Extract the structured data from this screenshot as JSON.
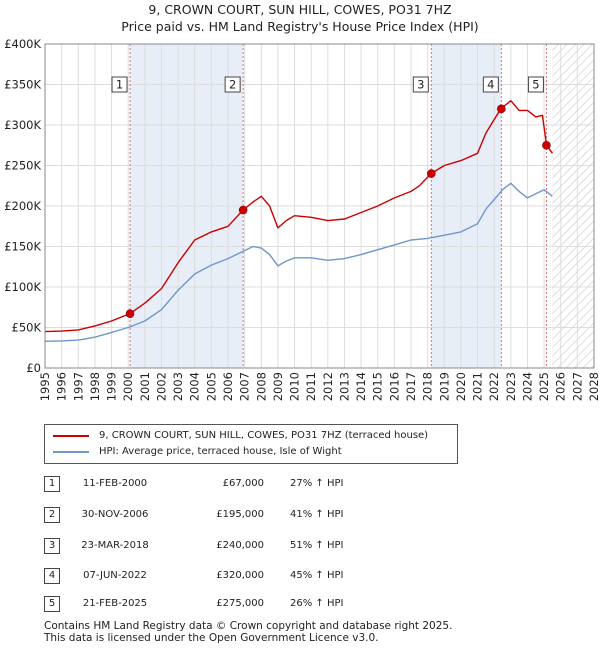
{
  "title_line1": "9, CROWN COURT, SUN HILL, COWES, PO31 7HZ",
  "title_line2": "Price paid vs. HM Land Registry's House Price Index (HPI)",
  "colors": {
    "property": "#cc0000",
    "hpi": "#6f96cc",
    "marker_border": "#cc0000",
    "shade": "#e8eef8"
  },
  "chart_data": {
    "type": "line",
    "xlim": [
      1995,
      2028
    ],
    "ylim": [
      0,
      400000
    ],
    "y_ticks": [
      0,
      50000,
      100000,
      150000,
      200000,
      250000,
      300000,
      350000,
      400000
    ],
    "y_tick_labels": [
      "£0",
      "£50K",
      "£100K",
      "£150K",
      "£200K",
      "£250K",
      "£300K",
      "£350K",
      "£400K"
    ],
    "x_ticks": [
      1995,
      1996,
      1997,
      1998,
      1999,
      2000,
      2001,
      2002,
      2003,
      2004,
      2005,
      2006,
      2007,
      2008,
      2009,
      2010,
      2011,
      2012,
      2013,
      2014,
      2015,
      2016,
      2017,
      2018,
      2019,
      2020,
      2021,
      2022,
      2023,
      2024,
      2025,
      2026,
      2027,
      2028
    ],
    "x_tick_labels": [
      "1995",
      "1996",
      "1997",
      "1998",
      "1999",
      "2000",
      "2001",
      "2002",
      "2003",
      "2004",
      "2005",
      "2006",
      "2007",
      "2008",
      "2009",
      "2010",
      "2011",
      "2012",
      "2013",
      "2014",
      "2015",
      "2016",
      "2017",
      "2018",
      "2019",
      "2020",
      "2021",
      "2022",
      "2023",
      "2024",
      "2025",
      "2026",
      "2027",
      "2028"
    ],
    "series": [
      {
        "name": "9, CROWN COURT, SUN HILL, COWES, PO31 7HZ (terraced house)",
        "color": "#cc0000",
        "points": [
          [
            1995.0,
            45000
          ],
          [
            1996.0,
            45500
          ],
          [
            1997.0,
            47000
          ],
          [
            1998.0,
            52000
          ],
          [
            1999.0,
            58000
          ],
          [
            2000.1,
            67000
          ],
          [
            2001.0,
            80000
          ],
          [
            2002.0,
            98000
          ],
          [
            2003.0,
            130000
          ],
          [
            2004.0,
            158000
          ],
          [
            2005.0,
            168000
          ],
          [
            2006.0,
            175000
          ],
          [
            2006.9,
            195000
          ],
          [
            2007.5,
            205000
          ],
          [
            2008.0,
            212000
          ],
          [
            2008.5,
            200000
          ],
          [
            2009.0,
            173000
          ],
          [
            2009.5,
            182000
          ],
          [
            2010.0,
            188000
          ],
          [
            2011.0,
            186000
          ],
          [
            2012.0,
            182000
          ],
          [
            2013.0,
            184000
          ],
          [
            2014.0,
            192000
          ],
          [
            2015.0,
            200000
          ],
          [
            2016.0,
            210000
          ],
          [
            2017.0,
            218000
          ],
          [
            2017.5,
            225000
          ],
          [
            2018.2,
            240000
          ],
          [
            2019.0,
            250000
          ],
          [
            2020.0,
            256000
          ],
          [
            2021.0,
            265000
          ],
          [
            2021.5,
            290000
          ],
          [
            2022.4,
            320000
          ],
          [
            2023.0,
            330000
          ],
          [
            2023.5,
            318000
          ],
          [
            2024.0,
            318000
          ],
          [
            2024.5,
            310000
          ],
          [
            2024.9,
            312000
          ],
          [
            2025.15,
            275000
          ],
          [
            2025.5,
            265000
          ]
        ]
      },
      {
        "name": "HPI: Average price, terraced house, Isle of Wight",
        "color": "#6f96cc",
        "points": [
          [
            1995.0,
            33000
          ],
          [
            1996.0,
            33500
          ],
          [
            1997.0,
            34500
          ],
          [
            1998.0,
            38000
          ],
          [
            1999.0,
            44000
          ],
          [
            2000.0,
            50000
          ],
          [
            2001.0,
            58000
          ],
          [
            2002.0,
            72000
          ],
          [
            2003.0,
            96000
          ],
          [
            2004.0,
            116000
          ],
          [
            2005.0,
            127000
          ],
          [
            2006.0,
            135000
          ],
          [
            2007.0,
            145000
          ],
          [
            2007.5,
            150000
          ],
          [
            2008.0,
            148000
          ],
          [
            2008.5,
            140000
          ],
          [
            2009.0,
            126000
          ],
          [
            2009.5,
            132000
          ],
          [
            2010.0,
            136000
          ],
          [
            2011.0,
            136000
          ],
          [
            2012.0,
            133000
          ],
          [
            2013.0,
            135000
          ],
          [
            2014.0,
            140000
          ],
          [
            2015.0,
            146000
          ],
          [
            2016.0,
            152000
          ],
          [
            2017.0,
            158000
          ],
          [
            2018.0,
            160000
          ],
          [
            2019.0,
            164000
          ],
          [
            2020.0,
            168000
          ],
          [
            2021.0,
            178000
          ],
          [
            2021.5,
            196000
          ],
          [
            2022.0,
            208000
          ],
          [
            2022.5,
            220000
          ],
          [
            2023.0,
            228000
          ],
          [
            2023.5,
            218000
          ],
          [
            2024.0,
            210000
          ],
          [
            2024.5,
            215000
          ],
          [
            2025.0,
            220000
          ],
          [
            2025.5,
            212000
          ]
        ]
      }
    ],
    "sales": [
      {
        "label": "1",
        "x": 2000.11,
        "y": 67000
      },
      {
        "label": "2",
        "x": 2006.91,
        "y": 195000
      },
      {
        "label": "3",
        "x": 2018.22,
        "y": 240000
      },
      {
        "label": "4",
        "x": 2022.43,
        "y": 320000
      },
      {
        "label": "5",
        "x": 2025.14,
        "y": 275000
      }
    ],
    "shaded_periods": [
      [
        2000.11,
        2006.91
      ],
      [
        2018.22,
        2022.43
      ]
    ],
    "future_from": 2025.5
  },
  "legend": {
    "property_label": "9, CROWN COURT, SUN HILL, COWES, PO31 7HZ (terraced house)",
    "hpi_label": "HPI: Average price, terraced house, Isle of Wight"
  },
  "transactions": [
    {
      "num": "1",
      "date": "11-FEB-2000",
      "price": "£67,000",
      "hpi": "27% ↑ HPI"
    },
    {
      "num": "2",
      "date": "30-NOV-2006",
      "price": "£195,000",
      "hpi": "41% ↑ HPI"
    },
    {
      "num": "3",
      "date": "23-MAR-2018",
      "price": "£240,000",
      "hpi": "51% ↑ HPI"
    },
    {
      "num": "4",
      "date": "07-JUN-2022",
      "price": "£320,000",
      "hpi": "45% ↑ HPI"
    },
    {
      "num": "5",
      "date": "21-FEB-2025",
      "price": "£275,000",
      "hpi": "26% ↑ HPI"
    }
  ],
  "footer": {
    "line1": "Contains HM Land Registry data © Crown copyright and database right 2025.",
    "line2": "This data is licensed under the Open Government Licence v3.0."
  }
}
